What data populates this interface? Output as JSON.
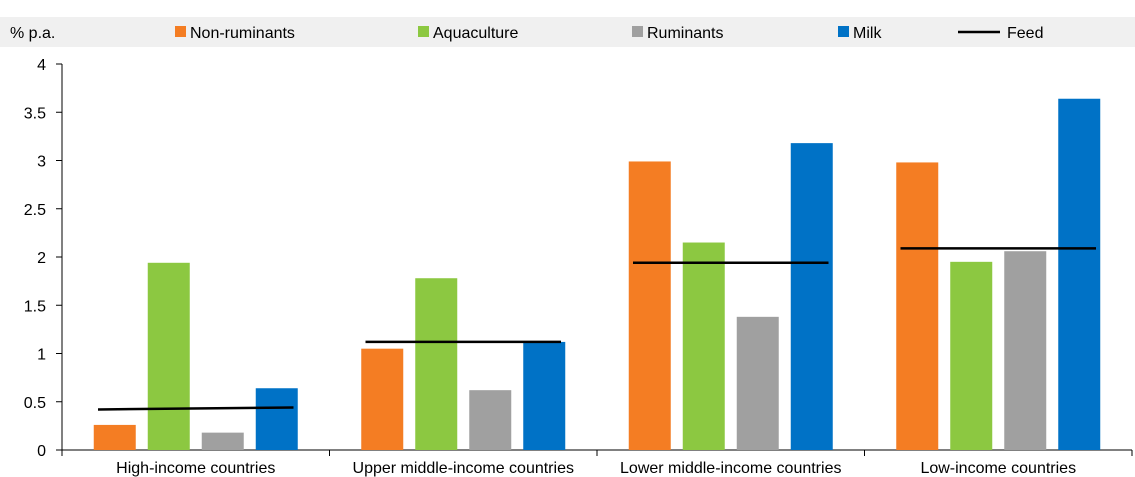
{
  "chart_data": {
    "type": "bar",
    "ylabel": "% p.a.",
    "ylim": [
      0,
      4
    ],
    "yticks": [
      "0",
      "0.5",
      "1",
      "1.5",
      "2",
      "2.5",
      "3",
      "3.5",
      "4"
    ],
    "grid": false,
    "legend_position": "top",
    "categories": [
      "High-income countries",
      "Upper middle-income countries",
      "Lower middle-income countries",
      "Low-income countries"
    ],
    "series": [
      {
        "name": "Non-ruminants",
        "kind": "bar",
        "color": "#f47d23",
        "values": [
          0.26,
          1.05,
          2.99,
          2.98
        ]
      },
      {
        "name": "Aquaculture",
        "kind": "bar",
        "color": "#8cc841",
        "values": [
          1.94,
          1.78,
          2.15,
          1.95
        ]
      },
      {
        "name": "Ruminants",
        "kind": "bar",
        "color": "#a0a0a0",
        "values": [
          0.18,
          0.62,
          1.38,
          2.06
        ]
      },
      {
        "name": "Milk",
        "kind": "bar",
        "color": "#0072c6",
        "values": [
          0.64,
          1.12,
          3.18,
          3.64
        ]
      },
      {
        "name": "Feed",
        "kind": "line",
        "color": "#000000",
        "values": [
          [
            0.42,
            0.44
          ],
          [
            1.12,
            1.12
          ],
          [
            1.94,
            1.94
          ],
          [
            2.09,
            2.09
          ]
        ]
      }
    ]
  }
}
